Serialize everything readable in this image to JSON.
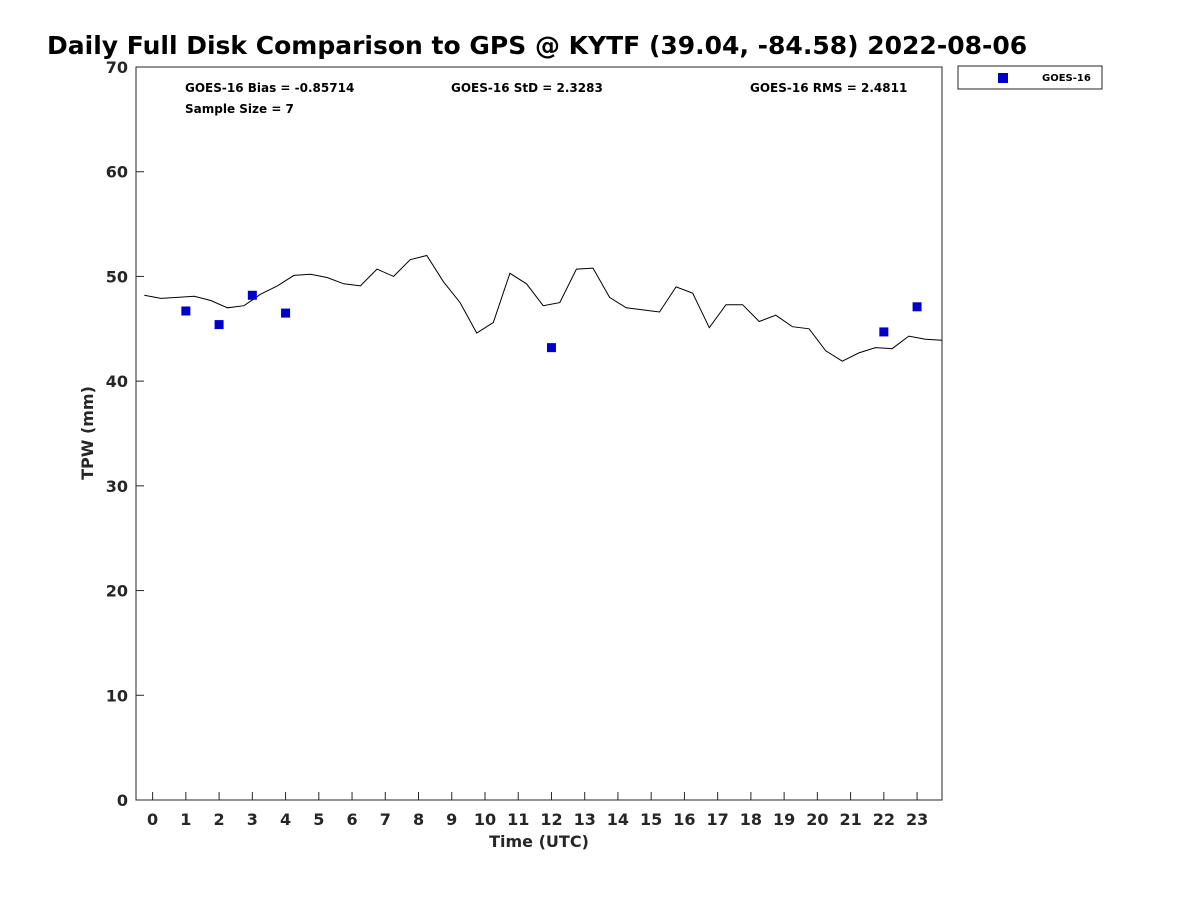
{
  "chart_data": {
    "type": "scatter",
    "title": "Daily Full Disk Comparison to GPS @ KYTF (39.04, -84.58) 2022-08-06",
    "xlabel": "Time (UTC)",
    "ylabel": "TPW (mm)",
    "xlim": [
      -0.5,
      23.75
    ],
    "ylim": [
      0,
      70
    ],
    "x_ticks": [
      0,
      1,
      2,
      3,
      4,
      5,
      6,
      7,
      8,
      9,
      10,
      11,
      12,
      13,
      14,
      15,
      16,
      17,
      18,
      19,
      20,
      21,
      22,
      23
    ],
    "x_tick_labels": [
      "0",
      "1",
      "2",
      "3",
      "4",
      "5",
      "6",
      "7",
      "8",
      "9",
      "10",
      "11",
      "12",
      "13",
      "14",
      "15",
      "16",
      "17",
      "18",
      "19",
      "20",
      "21",
      "22",
      "23"
    ],
    "y_ticks": [
      0,
      10,
      20,
      30,
      40,
      50,
      60,
      70
    ],
    "y_tick_labels": [
      "0",
      "10",
      "20",
      "30",
      "40",
      "50",
      "60",
      "70"
    ],
    "grid": false,
    "legend_position": "top-right",
    "stats": {
      "bias": "GOES-16 Bias = -0.85714",
      "std": "GOES-16 StD = 2.3283",
      "rms": "GOES-16 RMS = 2.4811",
      "sample_size": "Sample Size = 7"
    },
    "series": [
      {
        "name": "GOES-16",
        "kind": "scatter",
        "marker": "square",
        "color": "#0000cc",
        "points": [
          {
            "x": 1,
            "y": 46.7
          },
          {
            "x": 2,
            "y": 45.4
          },
          {
            "x": 3,
            "y": 48.2
          },
          {
            "x": 4,
            "y": 46.5
          },
          {
            "x": 12,
            "y": 43.2
          },
          {
            "x": 22,
            "y": 44.7
          },
          {
            "x": 23,
            "y": 47.1
          }
        ]
      },
      {
        "kind": "line",
        "color": "#000000",
        "x": [
          -0.25,
          0.25,
          0.75,
          1.25,
          1.75,
          2.25,
          2.75,
          3.25,
          3.75,
          4.25,
          4.75,
          5.25,
          5.75,
          6.25,
          6.75,
          7.25,
          7.75,
          8.25,
          8.75,
          9.25,
          9.75,
          10.25,
          10.75,
          11.25,
          11.75,
          12.25,
          12.75,
          13.25,
          13.75,
          14.25,
          14.75,
          15.25,
          15.75,
          16.25,
          16.75,
          17.25,
          17.75,
          18.25,
          18.75,
          19.25,
          19.75,
          20.25,
          20.75,
          21.25,
          21.75,
          22.25,
          22.75,
          23.25,
          23.75
        ],
        "y": [
          48.2,
          47.9,
          48.0,
          48.1,
          47.7,
          47.0,
          47.2,
          48.3,
          49.1,
          50.1,
          50.2,
          49.9,
          49.3,
          49.1,
          50.7,
          50.0,
          51.6,
          52.0,
          49.5,
          47.5,
          44.6,
          45.6,
          50.3,
          49.3,
          47.2,
          47.5,
          50.7,
          50.8,
          48.0,
          47.0,
          46.8,
          46.6,
          49.0,
          48.4,
          45.1,
          47.3,
          47.3,
          45.7,
          46.3,
          45.2,
          45.0,
          42.9,
          41.9,
          42.7,
          43.2,
          43.1,
          44.3,
          44.0,
          43.9
        ]
      }
    ]
  }
}
